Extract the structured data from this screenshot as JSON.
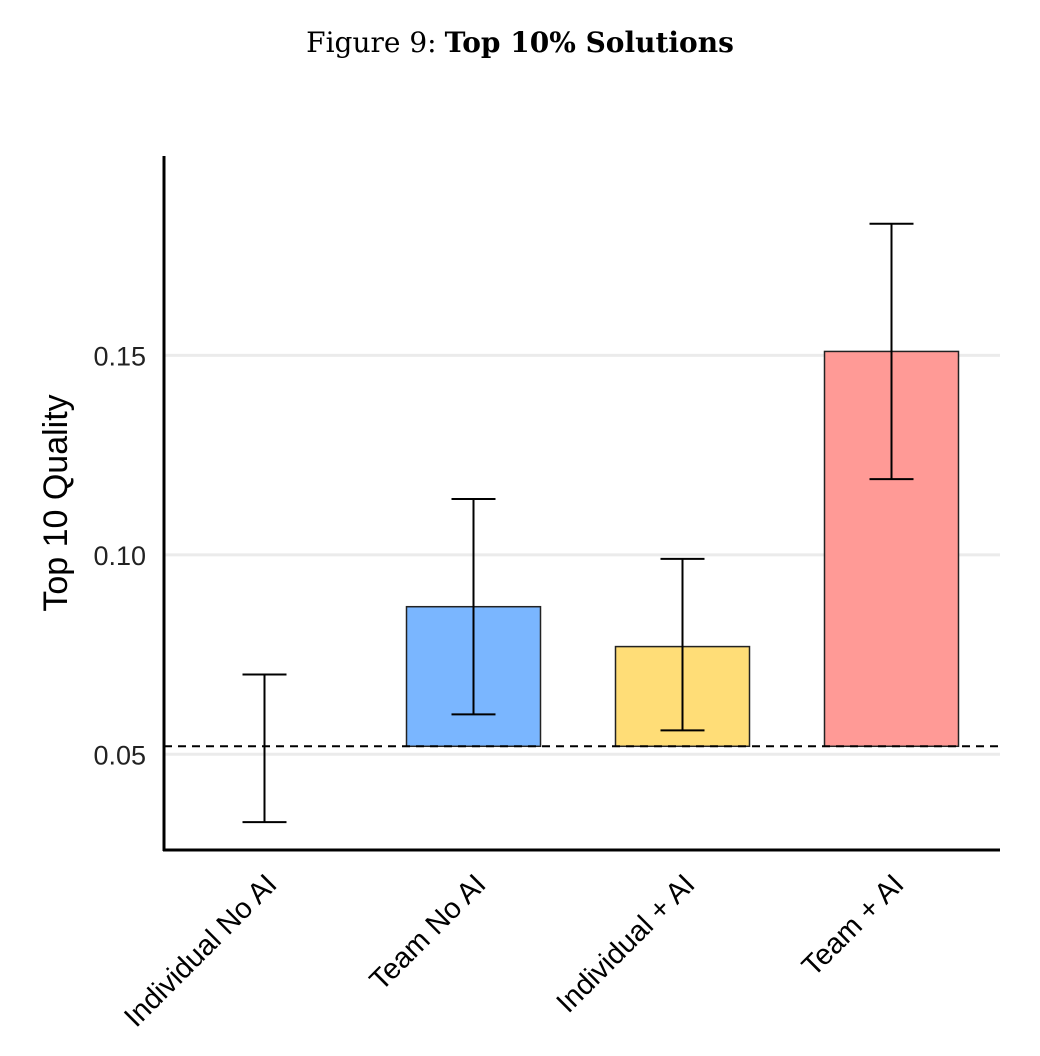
{
  "figure": {
    "number_label": "Figure 9:",
    "title": "Top 10% Solutions"
  },
  "chart_data": {
    "type": "bar",
    "title": "Top 10% Solutions",
    "xlabel": "",
    "ylabel": "Top 10 Quality",
    "ylim": [
      0.026,
      0.2
    ],
    "yticks": [
      0.05,
      0.1,
      0.15
    ],
    "ytick_labels": [
      "0.05",
      "0.10",
      "0.15"
    ],
    "baseline": 0.052,
    "baseline_style": "dashed",
    "grid": "horizontal",
    "categories": [
      "Individual No AI",
      "Team No AI",
      "Individual + AI",
      "Team + AI"
    ],
    "values": [
      0.052,
      0.087,
      0.077,
      0.151
    ],
    "ci_low": [
      0.033,
      0.06,
      0.056,
      0.119
    ],
    "ci_high": [
      0.07,
      0.114,
      0.099,
      0.183
    ],
    "colors": [
      "#ffffff",
      "#7ab6ff",
      "#ffdd77",
      "#ff9a96"
    ]
  }
}
